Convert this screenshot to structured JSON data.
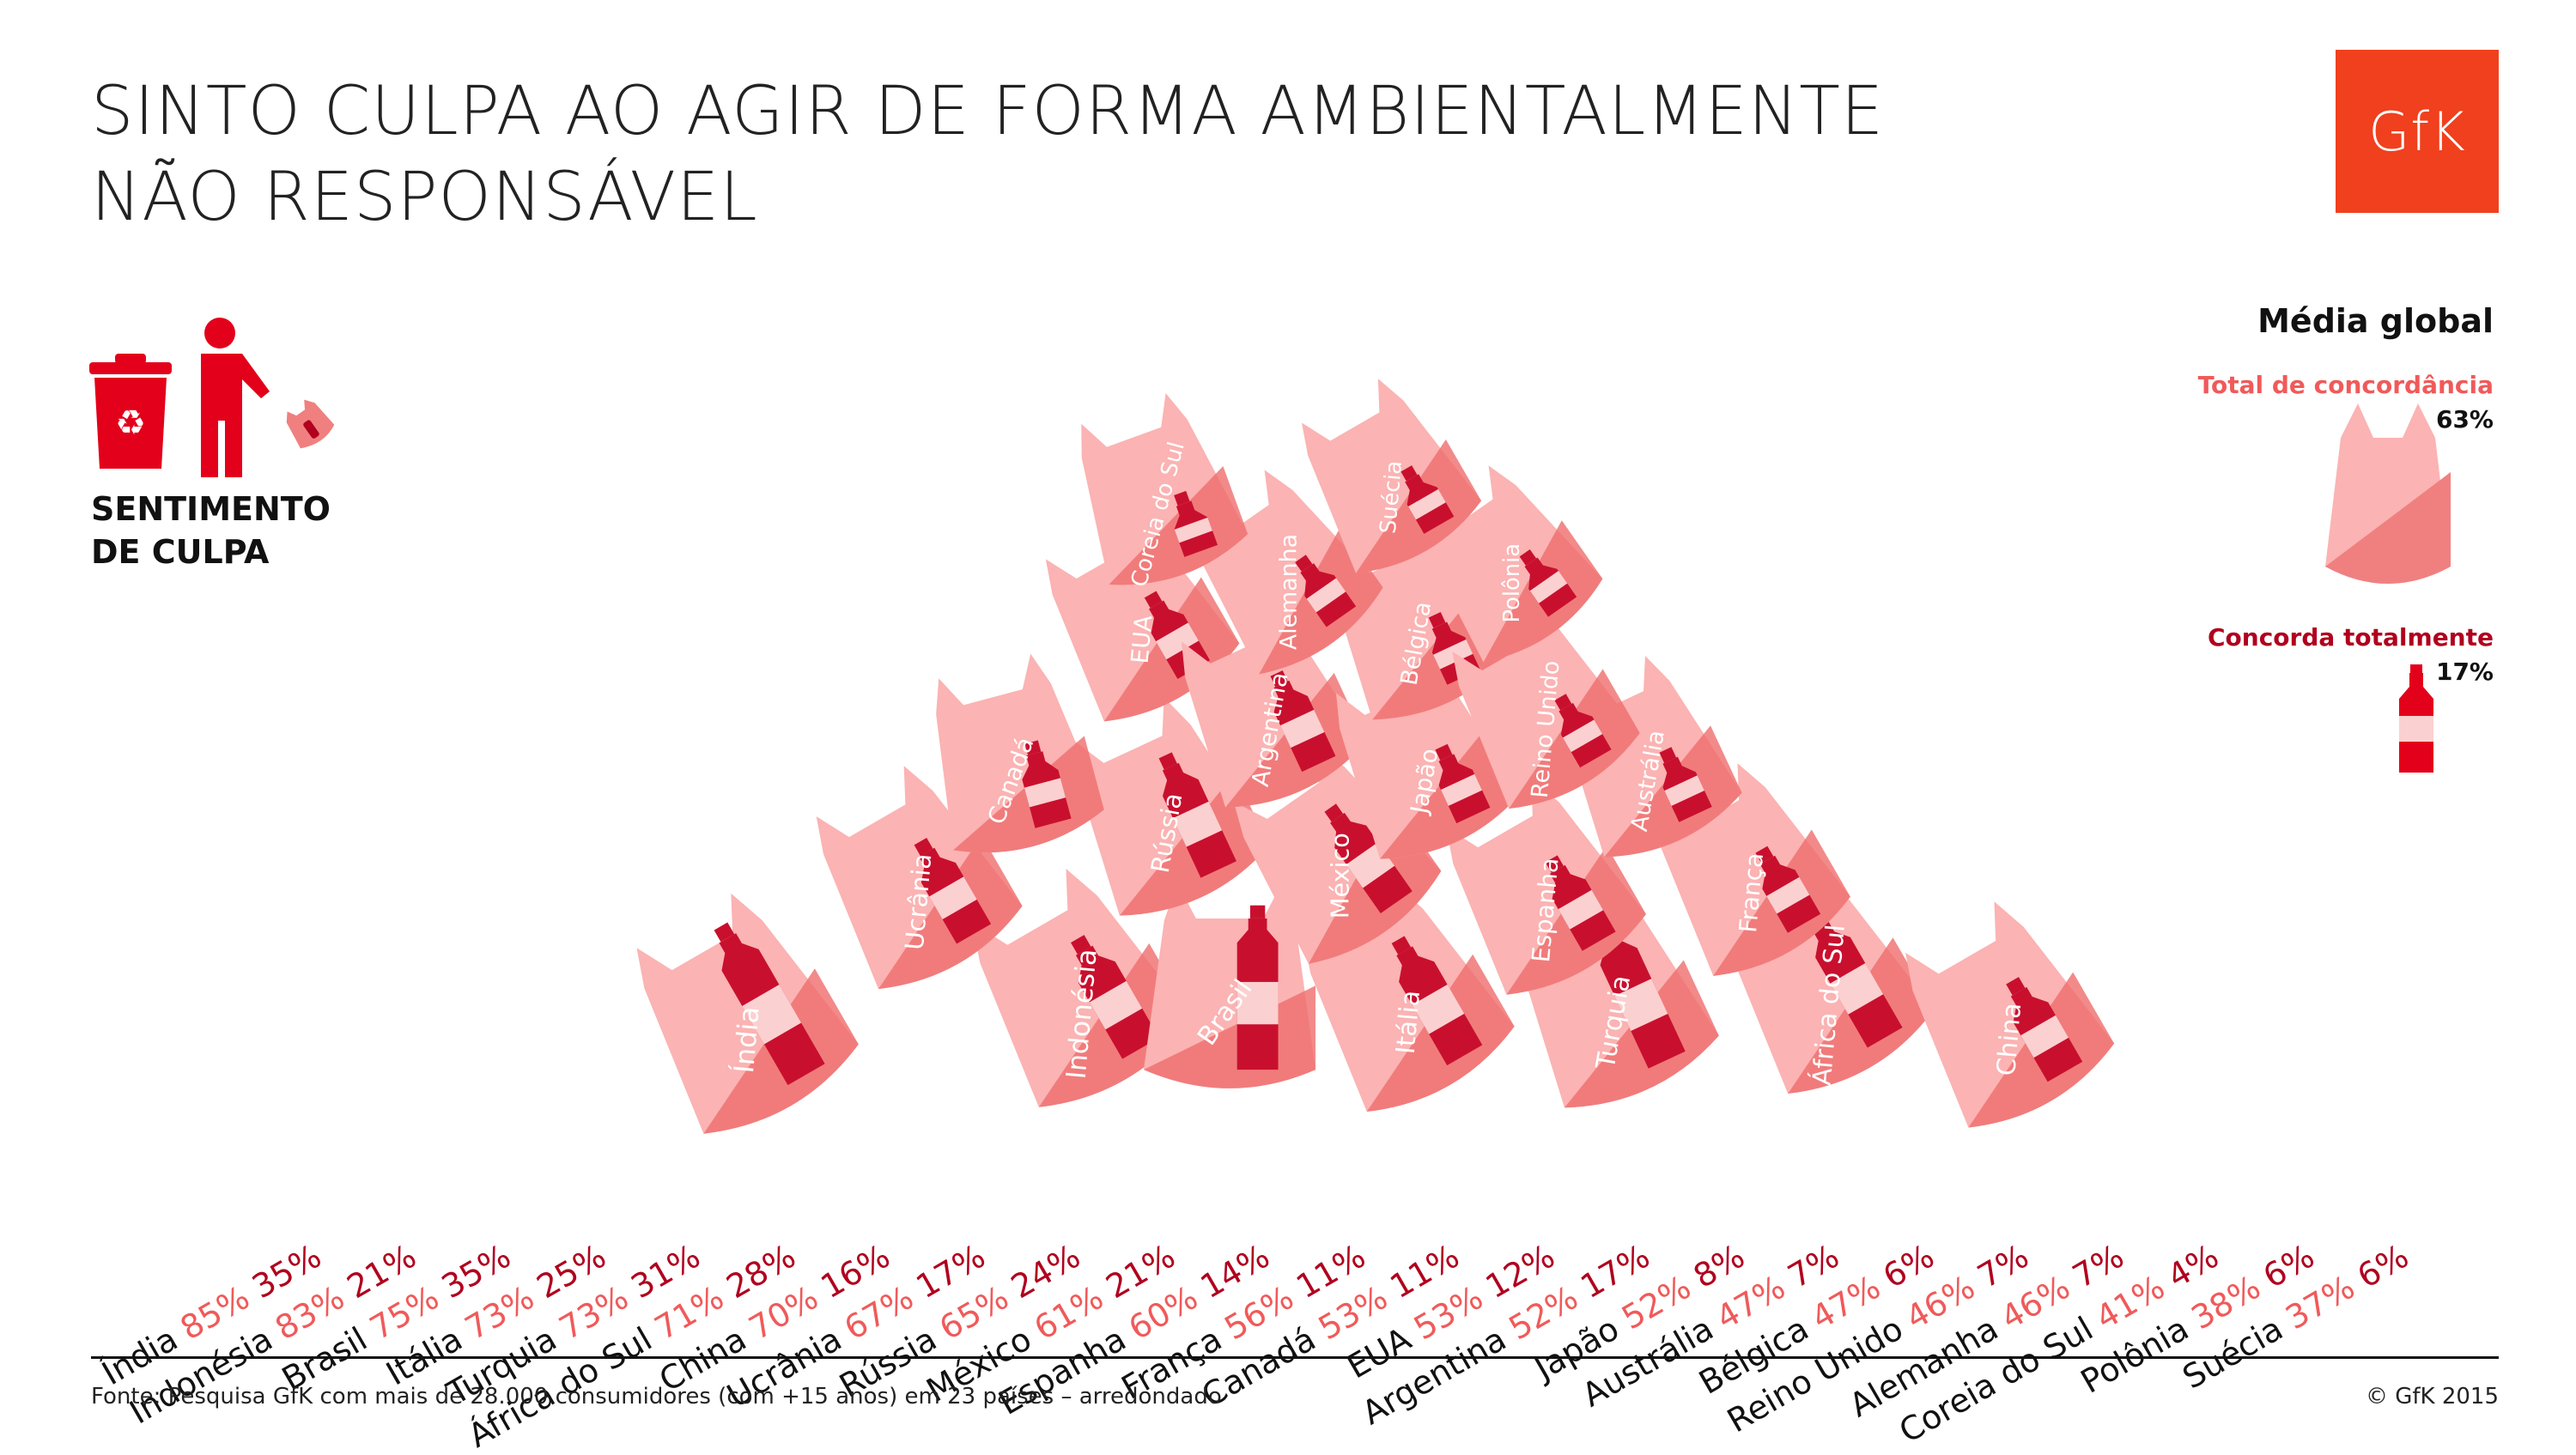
{
  "title_lines": [
    "SINTO CULPA AO AGIR DE FORMA AMBIENTALMENTE",
    "NÃO RESPONSÁVEL"
  ],
  "logo_text": "GfK",
  "section_label": [
    "SENTIMENTO",
    "DE CULPA"
  ],
  "legend": {
    "title": "Média global",
    "total_label": "Total de concordância",
    "total_value": "63%",
    "full_label": "Concorda totalmente",
    "full_value": "17%"
  },
  "colors": {
    "brand": "#f0401e",
    "total_agree": "#f05a5a",
    "fully_agree": "#b0001e",
    "bag_light": "#fbb3b3",
    "bag_dark": "#e85d5d"
  },
  "source": "Fonte: Pesquisa GfK com mais de 28.000 consumidores (com +15 anos) em 23 países – arredondado",
  "copyright": "© GfK 2015",
  "chart_data": {
    "type": "bar",
    "categories": [
      "Índia",
      "Indonésia",
      "Brasil",
      "Itália",
      "Turquia",
      "África do Sul",
      "China",
      "Ucrânia",
      "Rússia",
      "México",
      "Espanha",
      "França",
      "Canadá",
      "EUA",
      "Argentina",
      "Japão",
      "Austrália",
      "Bélgica",
      "Reino Unido",
      "Alemanha",
      "Coreia do Sul",
      "Polônia",
      "Suécia"
    ],
    "series": [
      {
        "name": "Total de concordância",
        "values": [
          85,
          83,
          75,
          73,
          73,
          71,
          70,
          67,
          65,
          61,
          60,
          56,
          53,
          53,
          52,
          52,
          47,
          47,
          46,
          46,
          41,
          38,
          37
        ]
      },
      {
        "name": "Concorda totalmente",
        "values": [
          35,
          21,
          35,
          25,
          31,
          28,
          16,
          17,
          24,
          21,
          14,
          11,
          11,
          12,
          17,
          8,
          7,
          6,
          7,
          7,
          4,
          6,
          6
        ]
      }
    ],
    "value_labels_total": [
      "85%",
      "83%",
      "75%",
      "73%",
      "73%",
      "71%",
      "70%",
      "67%",
      "65%",
      "61%",
      "60%",
      "56%",
      "53%",
      "53%",
      "52%",
      "52%",
      "47%",
      "47%",
      "46%",
      "46%",
      "41%",
      "38%",
      "37%"
    ],
    "value_labels_full": [
      "35%",
      "21%",
      "35%",
      "25%",
      "31%",
      "28%",
      "16%",
      "17%",
      "24%",
      "21%",
      "14%",
      "11%",
      "11%",
      "12%",
      "17%",
      "8%",
      "7%",
      "6%",
      "7%",
      "7%",
      "4%",
      "6%",
      "6%"
    ],
    "bag_labels": [
      "Índia",
      "Indonésia",
      "Brasil",
      "Itália",
      "Turquia",
      "África do Sul",
      "China",
      "Ucrânia",
      "Rússia",
      "México",
      "Espanha",
      "França",
      "Canadá",
      "EUA",
      "Argentina",
      "Japão",
      "Austrália",
      "Bélgica",
      "Reino Unido",
      "Alemanha",
      "Coreia do Sul",
      "Polônia",
      "Suécia"
    ]
  }
}
